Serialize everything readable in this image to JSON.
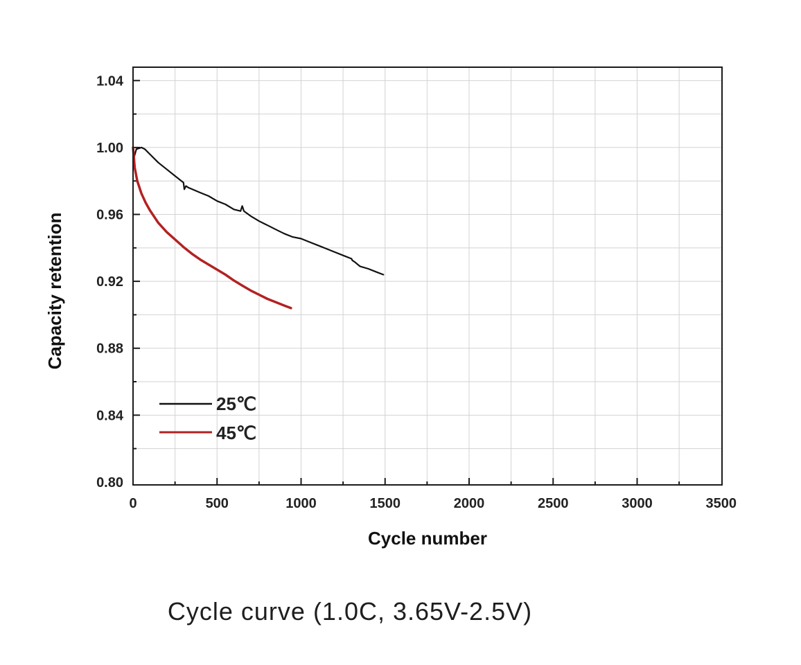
{
  "caption": "Cycle curve  (1.0C, 3.65V-2.5V)",
  "chart_data": {
    "type": "line",
    "title": "",
    "xlabel": "Cycle number",
    "ylabel": "Capacity retention",
    "xlim": [
      0,
      3500
    ],
    "ylim": [
      0.8,
      1.05
    ],
    "x_ticks": [
      0,
      500,
      1000,
      1500,
      2000,
      2500,
      3000,
      3500
    ],
    "y_ticks": [
      0.8,
      0.84,
      0.88,
      0.92,
      0.96,
      1.0,
      1.04
    ],
    "x_tick_labels": [
      "0",
      "500",
      "1000",
      "1500",
      "2000",
      "2500",
      "3000",
      "3500"
    ],
    "y_tick_labels": [
      "0.80",
      "0.84",
      "0.88",
      "0.92",
      "0.96",
      "1.00",
      "1.04"
    ],
    "grid": true,
    "legend_position": "bottom-left",
    "series": [
      {
        "name": "25℃",
        "color": "#111111",
        "x": [
          0,
          20,
          50,
          70,
          100,
          150,
          200,
          250,
          300,
          305,
          315,
          330,
          400,
          450,
          500,
          550,
          600,
          640,
          650,
          660,
          700,
          750,
          800,
          850,
          900,
          950,
          1000,
          1050,
          1100,
          1150,
          1200,
          1250,
          1300,
          1305,
          1320,
          1350,
          1400,
          1450,
          1490
        ],
        "y": [
          0.992,
          0.999,
          1.0,
          0.999,
          0.996,
          0.991,
          0.987,
          0.983,
          0.979,
          0.975,
          0.977,
          0.976,
          0.973,
          0.971,
          0.968,
          0.966,
          0.963,
          0.962,
          0.965,
          0.962,
          0.959,
          0.956,
          0.9535,
          0.951,
          0.9485,
          0.9465,
          0.9455,
          0.9435,
          0.9415,
          0.9395,
          0.9375,
          0.9355,
          0.9335,
          0.9325,
          0.9315,
          0.929,
          0.9275,
          0.9255,
          0.924
        ]
      },
      {
        "name": "45℃",
        "color": "#b22222",
        "x": [
          0,
          10,
          25,
          50,
          75,
          100,
          150,
          200,
          250,
          300,
          350,
          400,
          450,
          500,
          550,
          600,
          650,
          700,
          750,
          800,
          850,
          900,
          940
        ],
        "y": [
          1.0,
          0.988,
          0.98,
          0.9725,
          0.967,
          0.9625,
          0.955,
          0.9495,
          0.945,
          0.9405,
          0.9365,
          0.933,
          0.93,
          0.927,
          0.924,
          0.9205,
          0.9175,
          0.9145,
          0.912,
          0.9095,
          0.9075,
          0.9055,
          0.904
        ]
      }
    ]
  }
}
